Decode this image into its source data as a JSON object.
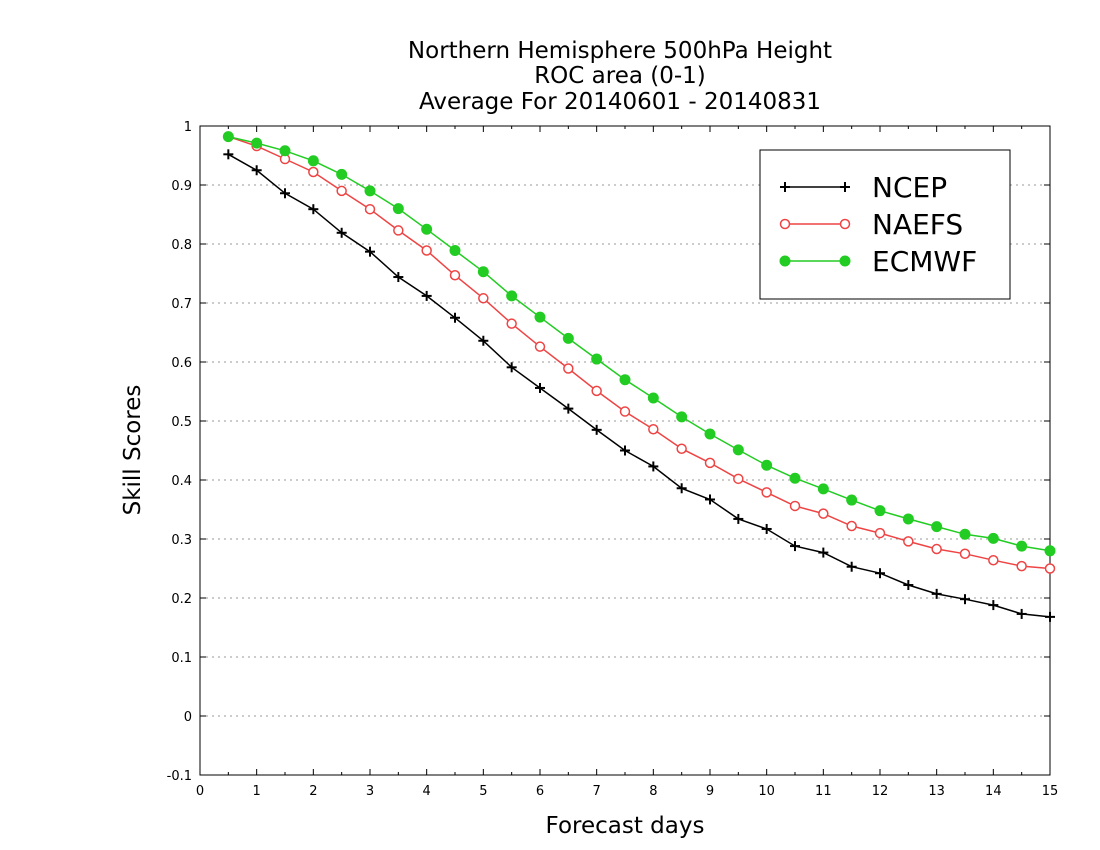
{
  "chart_data": {
    "type": "line",
    "title": [
      "Northern Hemisphere 500hPa Height",
      "ROC area (0-1)",
      "Average For 20140601 - 20140831"
    ],
    "xlabel": "Forecast days",
    "ylabel": "Skill Scores",
    "xlim": [
      0,
      15
    ],
    "ylim": [
      -0.1,
      1
    ],
    "xticks": [
      "0",
      "1",
      "2",
      "3",
      "4",
      "5",
      "6",
      "7",
      "8",
      "9",
      "10",
      "11",
      "12",
      "13",
      "14",
      "15"
    ],
    "yticks": [
      "-0.1",
      "0",
      "0.1",
      "0.2",
      "0.3",
      "0.4",
      "0.5",
      "0.6",
      "0.7",
      "0.8",
      "0.9",
      "1"
    ],
    "grid": "horizontal dotted",
    "legend_position": "top-right",
    "x": [
      0.5,
      1,
      1.5,
      2,
      2.5,
      3,
      3.5,
      4,
      4.5,
      5,
      5.5,
      6,
      6.5,
      7,
      7.5,
      8,
      8.5,
      9,
      9.5,
      10,
      10.5,
      11,
      11.5,
      12,
      12.5,
      13,
      13.5,
      14,
      14.5,
      15
    ],
    "series": [
      {
        "name": "NCEP",
        "color": "#000000",
        "marker": "plus",
        "values": [
          0.952,
          0.925,
          0.886,
          0.859,
          0.819,
          0.787,
          0.744,
          0.712,
          0.675,
          0.636,
          0.591,
          0.556,
          0.521,
          0.485,
          0.45,
          0.423,
          0.386,
          0.367,
          0.334,
          0.317,
          0.288,
          0.277,
          0.253,
          0.242,
          0.222,
          0.207,
          0.198,
          0.188,
          0.173,
          0.168
        ]
      },
      {
        "name": "NAEFS",
        "color": "#ee4444",
        "marker": "open-circle",
        "values": [
          0.982,
          0.966,
          0.944,
          0.922,
          0.89,
          0.859,
          0.823,
          0.789,
          0.747,
          0.708,
          0.665,
          0.626,
          0.589,
          0.551,
          0.516,
          0.486,
          0.453,
          0.429,
          0.402,
          0.379,
          0.356,
          0.343,
          0.322,
          0.31,
          0.296,
          0.283,
          0.275,
          0.264,
          0.254,
          0.25
        ]
      },
      {
        "name": "ECMWF",
        "color": "#22cc22",
        "marker": "filled-circle",
        "values": [
          0.982,
          0.971,
          0.958,
          0.941,
          0.918,
          0.89,
          0.86,
          0.825,
          0.789,
          0.753,
          0.712,
          0.676,
          0.64,
          0.605,
          0.57,
          0.539,
          0.507,
          0.478,
          0.451,
          0.425,
          0.403,
          0.385,
          0.366,
          0.348,
          0.334,
          0.321,
          0.308,
          0.301,
          0.288,
          0.28
        ]
      }
    ]
  }
}
